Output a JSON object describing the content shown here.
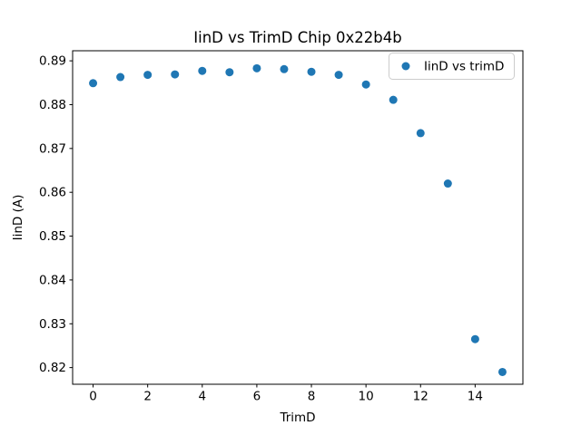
{
  "window": {
    "background_color": "#ffffff"
  },
  "chart_data": {
    "type": "scatter",
    "title": "IinD vs TrimD Chip 0x22b4b",
    "xlabel": "TrimD",
    "ylabel": "IinD (A)",
    "legend": {
      "label": "IinD vs trimD",
      "position": "upper right",
      "edge_color": "#cccccc",
      "face_color": "#ffffff"
    },
    "marker_color": "#1f77b4",
    "marker_shape": "circle",
    "grid": false,
    "x": [
      0,
      1,
      2,
      3,
      4,
      5,
      6,
      7,
      8,
      9,
      10,
      11,
      12,
      13,
      14,
      15
    ],
    "y": [
      0.8849,
      0.8863,
      0.8868,
      0.8869,
      0.8877,
      0.8874,
      0.8883,
      0.8881,
      0.8875,
      0.8868,
      0.8846,
      0.8811,
      0.8735,
      0.862,
      0.8265,
      0.819
    ],
    "xticks": [
      0,
      2,
      4,
      6,
      8,
      10,
      12,
      14
    ],
    "yticks": [
      0.82,
      0.83,
      0.84,
      0.85,
      0.86,
      0.87,
      0.88,
      0.89
    ],
    "ytick_decimals": 2,
    "xlim": [
      -0.75,
      15.75
    ],
    "ylim": [
      0.8162,
      0.8923
    ]
  }
}
